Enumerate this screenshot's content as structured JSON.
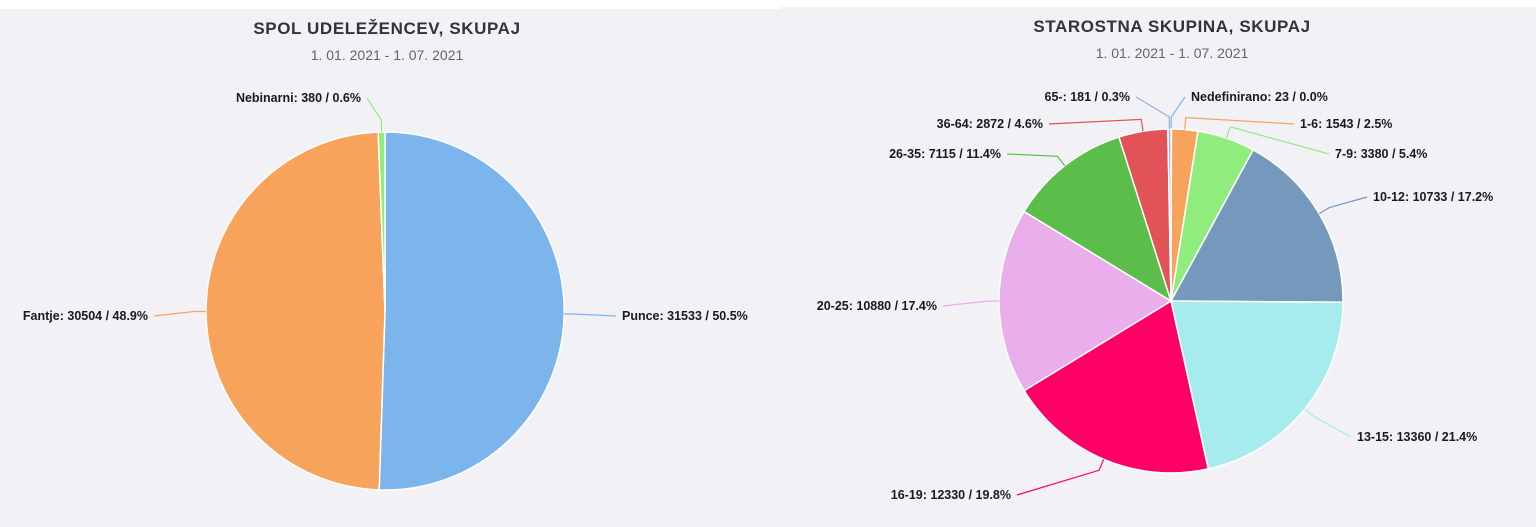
{
  "chart_data": [
    {
      "type": "pie",
      "title": "SPOL UDELEŽENCEV, SKUPAJ",
      "subtitle": "1. 01. 2021 - 1. 07. 2021",
      "slices": [
        {
          "name": "Punce",
          "value": 31533,
          "percent": "50.5%",
          "color": "#7cb5ec",
          "label": "Punce: 31533 / 50.5%"
        },
        {
          "name": "Fantje",
          "value": 30504,
          "percent": "48.9%",
          "color": "#f7a35c",
          "label": "Fantje: 30504 / 48.9%"
        },
        {
          "name": "Nebinarni",
          "value": 380,
          "percent": "0.6%",
          "color": "#90ed7d",
          "label": "Nebinarni: 380 / 0.6%"
        }
      ]
    },
    {
      "type": "pie",
      "title": "STAROSTNA SKUPINA, SKUPAJ",
      "subtitle": "1. 01. 2021 - 1. 07. 2021",
      "slices": [
        {
          "name": "Nedefinirano",
          "value": 23,
          "percent": "0.0%",
          "color": "#7cb5ec",
          "label": "Nedefinirano: 23 / 0.0%"
        },
        {
          "name": "1-6",
          "value": 1543,
          "percent": "2.5%",
          "color": "#f7a35c",
          "label": "1-6: 1543 / 2.5%"
        },
        {
          "name": "7-9",
          "value": 3380,
          "percent": "5.4%",
          "color": "#90ed7d",
          "label": "7-9: 3380 / 5.4%"
        },
        {
          "name": "10-12",
          "value": 10733,
          "percent": "17.2%",
          "color": "#7599bd",
          "label": "10-12: 10733 / 17.2%"
        },
        {
          "name": "13-15",
          "value": 13360,
          "percent": "21.4%",
          "color": "#a6ecec",
          "label": "13-15: 13360 / 21.4%"
        },
        {
          "name": "16-19",
          "value": 12330,
          "percent": "19.8%",
          "color": "#ff0066",
          "label": "16-19: 12330 / 19.8%"
        },
        {
          "name": "20-25",
          "value": 10880,
          "percent": "17.4%",
          "color": "#eaaeea",
          "label": "20-25: 10880 / 17.4%"
        },
        {
          "name": "26-35",
          "value": 7115,
          "percent": "11.4%",
          "color": "#5bbd4a",
          "label": "26-35: 7115 / 11.4%"
        },
        {
          "name": "36-64",
          "value": 2872,
          "percent": "4.6%",
          "color": "#e15357",
          "label": "36-64: 2872 / 4.6%"
        },
        {
          "name": "65-",
          "value": 181,
          "percent": "0.3%",
          "color": "#8eb4de",
          "label": "65-: 181 / 0.3%"
        }
      ]
    }
  ]
}
